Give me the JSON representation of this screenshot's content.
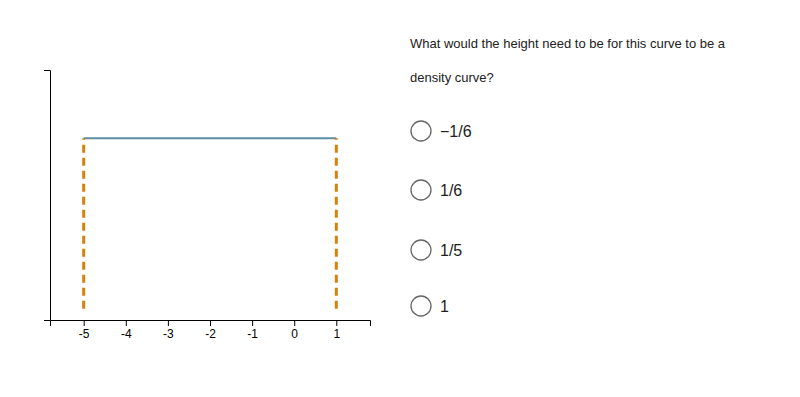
{
  "chart_data": {
    "type": "line",
    "xlim": [
      -5.8,
      1.8
    ],
    "xticks": [
      -5,
      -4,
      -3,
      -2,
      -1,
      0,
      1
    ],
    "ylim": [
      -0.02,
      0.42
    ],
    "tick_labels": "x",
    "grid": false,
    "series": [
      {
        "x": [
          -5,
          1
        ],
        "values": [
          0.3,
          0.3
        ],
        "color": "#5a8fa3",
        "line_style": "solid"
      },
      {
        "x": [
          -5,
          -5
        ],
        "values": [
          0,
          0.3
        ],
        "color": "#d4820a",
        "line_style": "dashed"
      },
      {
        "x": [
          1,
          1
        ],
        "values": [
          0,
          0.3
        ],
        "color": "#d4820a",
        "line_style": "dashed"
      }
    ],
    "annotations": [
      "What would the height need to be for this curve to be a",
      "density curve?",
      "−1/6",
      "1/6",
      "1/5",
      "1"
    ]
  }
}
